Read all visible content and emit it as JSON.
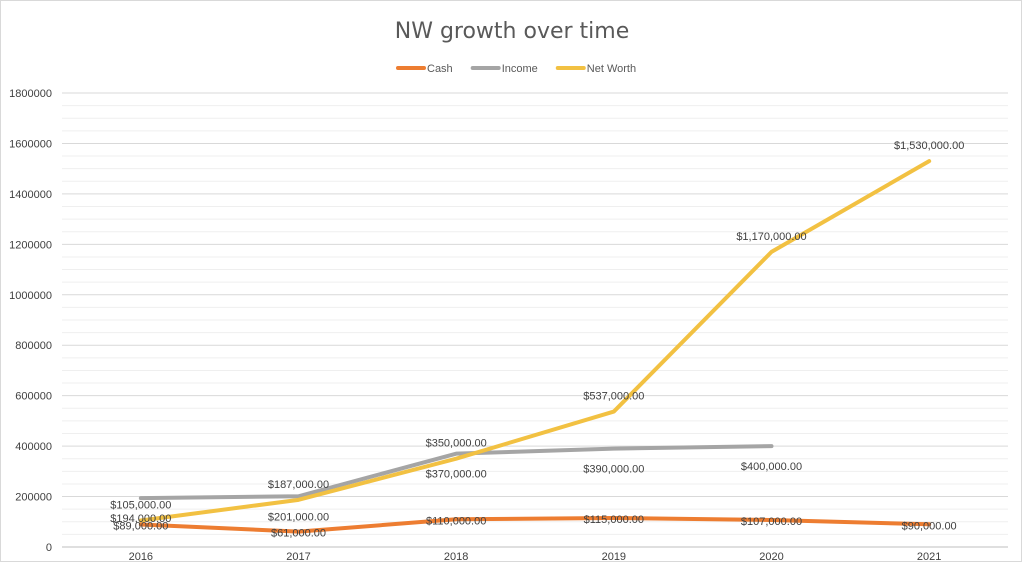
{
  "chart_data": {
    "type": "line",
    "title": "NW growth over time",
    "xlabel": "",
    "ylabel": "",
    "categories": [
      "2016",
      "2017",
      "2018",
      "2019",
      "2020",
      "2021"
    ],
    "ylim": [
      0,
      1800000
    ],
    "yticks": [
      0,
      200000,
      400000,
      600000,
      800000,
      1000000,
      1200000,
      1400000,
      1600000,
      1800000
    ],
    "ytick_labels": [
      "0",
      "200000",
      "400000",
      "600000",
      "800000",
      "1000000",
      "1200000",
      "1400000",
      "1600000",
      "1800000"
    ],
    "grid": true,
    "legend_position": "top",
    "series": [
      {
        "name": "Cash",
        "color": "#ED7D31",
        "values": [
          89000,
          61000,
          110000,
          115000,
          107000,
          90000
        ],
        "labels": [
          "$89,000.00",
          "$61,000.00",
          "$110,000.00",
          "$115,000.00",
          "$107,000.00",
          "$90,000.00"
        ]
      },
      {
        "name": "Income",
        "color": "#A5A5A5",
        "values": [
          194000,
          201000,
          370000,
          390000,
          400000,
          null
        ],
        "labels": [
          "$194,000.00",
          "$201,000.00",
          "$370,000.00",
          "$390,000.00",
          "$400,000.00",
          null
        ]
      },
      {
        "name": "Net Worth",
        "color": "#F2C142",
        "values": [
          105000,
          187000,
          350000,
          537000,
          1170000,
          1530000
        ],
        "labels": [
          "$105,000.00",
          "$187,000.00",
          "$350,000.00",
          "$537,000.00",
          "$1,170,000.00",
          "$1,530,000.00"
        ]
      }
    ]
  }
}
